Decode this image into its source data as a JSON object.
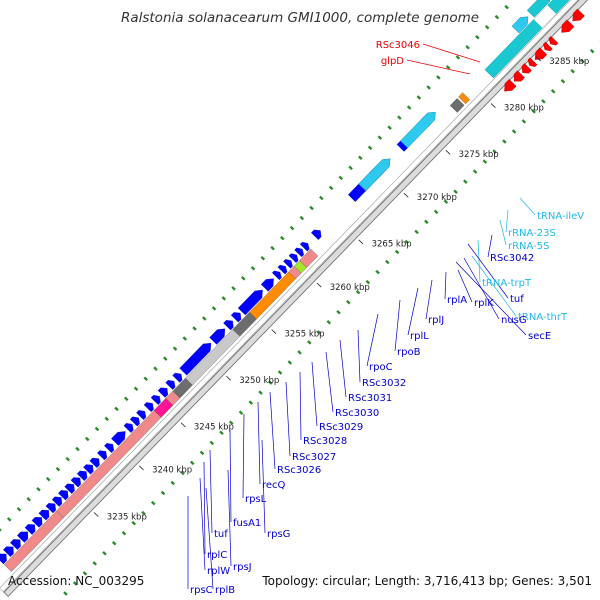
{
  "title": "Ralstonia solanacearum GMI1000, complete genome",
  "footer": {
    "accession": "Accession: NC_003295",
    "topology": "Topology: circular; Length: 3,716,413 bp; Genes: 3,501"
  },
  "colors": {
    "cds_forward": "#0000ff",
    "cds_reverse": "#ff0000",
    "trna": "#2ec9ee",
    "rrna": "#19c8d0",
    "other_feature": "#f08a8a",
    "backbone": "#777777",
    "gc_skew": "#2e8b2e",
    "label_blue": "#0000cc",
    "label_red": "#ee0000",
    "label_cyan": "#22b8e8"
  },
  "ticks": [
    "3235 kbp",
    "3240 kbp",
    "3245 kbp",
    "3250 kbp",
    "3255 kbp",
    "3260 kbp",
    "3265 kbp",
    "3270 kbp",
    "3275 kbp",
    "3280 kbp",
    "3285 kbp"
  ],
  "labels_red": [
    "RSc3046",
    "glpD"
  ],
  "labels_main": [
    "tRNA-ileV",
    "rRNA-23S",
    "rRNA-5S",
    "RSc3042",
    "tRNA-trpT",
    "tuf",
    "tRNA-thrT",
    "nusG",
    "secE",
    "rplK",
    "rplA",
    "rplJ",
    "rplL",
    "rpoB",
    "rpoC",
    "RSc3032",
    "RSc3031",
    "RSc3030",
    "RSc3029",
    "RSc3028",
    "RSc3027",
    "RSc3026",
    "recQ",
    "rpsL",
    "fusA1",
    "rpsG",
    "tuf",
    "rplC",
    "rpsJ",
    "rplW",
    "rplB",
    "rpsC"
  ]
}
